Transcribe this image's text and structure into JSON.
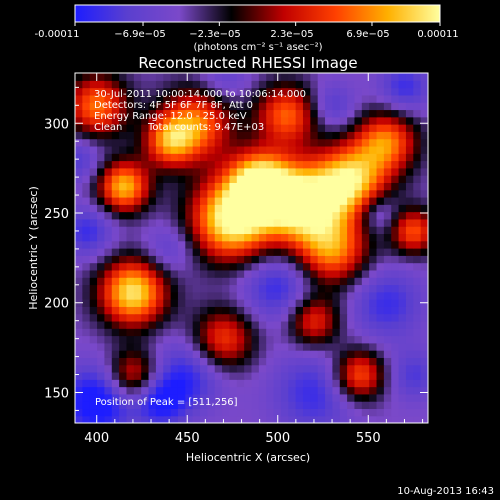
{
  "colorbar": {
    "tick_labels": [
      "-0.00011",
      "−6.9e−05",
      "−2.3e−05",
      "2.3e−05",
      "6.9e−05",
      "0.00011"
    ],
    "tick_values": [
      -0.00011,
      -6.9e-05,
      -2.3e-05,
      2.3e-05,
      6.9e-05,
      0.00011
    ],
    "range": [
      -0.00011,
      0.00011
    ],
    "unit_label": "(photons cm⁻² s⁻¹ asec⁻²)",
    "colors": [
      "#1d1dff",
      "#5a3fcf",
      "#7b49c9",
      "#000000",
      "#c00000",
      "#ff4000",
      "#ffb000",
      "#ffffa0"
    ]
  },
  "chart_data": {
    "type": "heatmap",
    "title": "Reconstructed RHESSI Image",
    "xlabel": "Heliocentric X (arcsec)",
    "ylabel": "Heliocentric Y (arcsec)",
    "xlim": [
      388,
      583
    ],
    "ylim": [
      133,
      328
    ],
    "x_ticks": [
      400,
      450,
      500,
      550
    ],
    "y_ticks": [
      150,
      200,
      250,
      300
    ],
    "annotations": [
      "30-Jul-2011 10:00:14.000 to 10:06:14.000",
      "Detectors: 4F 5F 6F 7F 8F, Att 0",
      "Energy Range: 12.0 - 25.0 keV",
      "Clean",
      "Total counts: 9.47E+03"
    ],
    "peak_label": "Position of Peak = [511,256]",
    "peak": [
      511,
      256
    ],
    "sources": [
      {
        "x": 475,
        "y": 247,
        "r": 16,
        "v": 1.0
      },
      {
        "x": 512,
        "y": 256,
        "r": 15,
        "v": 0.95
      },
      {
        "x": 540,
        "y": 268,
        "r": 14,
        "v": 0.8
      },
      {
        "x": 490,
        "y": 268,
        "r": 12,
        "v": 0.75
      },
      {
        "x": 420,
        "y": 206,
        "r": 13,
        "v": 0.85
      },
      {
        "x": 415,
        "y": 265,
        "r": 10,
        "v": 0.7
      },
      {
        "x": 530,
        "y": 230,
        "r": 14,
        "v": 0.55
      },
      {
        "x": 560,
        "y": 290,
        "r": 12,
        "v": 0.5
      },
      {
        "x": 455,
        "y": 300,
        "r": 14,
        "v": 0.5
      },
      {
        "x": 505,
        "y": 305,
        "r": 12,
        "v": 0.45
      },
      {
        "x": 400,
        "y": 310,
        "r": 12,
        "v": 0.5
      },
      {
        "x": 470,
        "y": 180,
        "r": 12,
        "v": 0.35
      },
      {
        "x": 545,
        "y": 160,
        "r": 10,
        "v": 0.45
      },
      {
        "x": 520,
        "y": 190,
        "r": 10,
        "v": 0.3
      },
      {
        "x": 420,
        "y": 160,
        "r": 10,
        "v": 0.3
      },
      {
        "x": 575,
        "y": 240,
        "r": 9,
        "v": 0.4
      },
      {
        "x": 440,
        "y": 290,
        "r": 10,
        "v": 0.4
      },
      {
        "x": 395,
        "y": 240,
        "r": 10,
        "v": -0.5
      },
      {
        "x": 440,
        "y": 230,
        "r": 10,
        "v": -0.35
      },
      {
        "x": 500,
        "y": 210,
        "r": 14,
        "v": -0.55
      },
      {
        "x": 560,
        "y": 200,
        "r": 14,
        "v": -0.5
      },
      {
        "x": 450,
        "y": 160,
        "r": 14,
        "v": -0.55
      },
      {
        "x": 520,
        "y": 150,
        "r": 16,
        "v": -0.5
      },
      {
        "x": 570,
        "y": 320,
        "r": 10,
        "v": -0.5
      },
      {
        "x": 470,
        "y": 325,
        "r": 10,
        "v": -0.3
      },
      {
        "x": 400,
        "y": 145,
        "r": 14,
        "v": -0.8
      },
      {
        "x": 435,
        "y": 145,
        "r": 10,
        "v": -0.6
      },
      {
        "x": 575,
        "y": 160,
        "r": 10,
        "v": -0.4
      },
      {
        "x": 530,
        "y": 310,
        "r": 9,
        "v": -0.4
      },
      {
        "x": 390,
        "y": 280,
        "r": 9,
        "v": -0.4
      },
      {
        "x": 555,
        "y": 250,
        "r": 8,
        "v": -0.45
      }
    ]
  },
  "footer": {
    "timestamp": "10-Aug-2013 16:43"
  }
}
